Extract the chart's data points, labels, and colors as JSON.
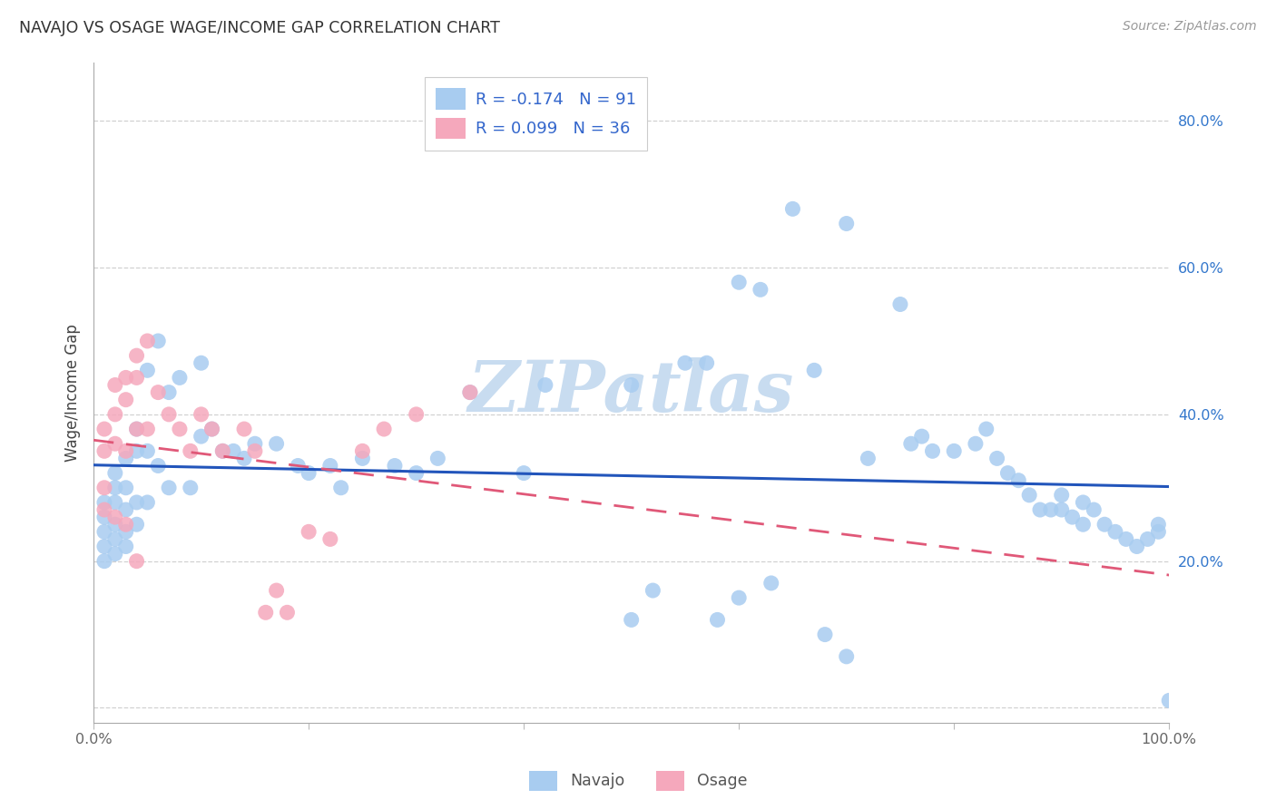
{
  "title": "NAVAJO VS OSAGE WAGE/INCOME GAP CORRELATION CHART",
  "source": "Source: ZipAtlas.com",
  "ylabel": "Wage/Income Gap",
  "xlim": [
    0.0,
    1.0
  ],
  "ylim": [
    -0.02,
    0.88
  ],
  "navajo_R": -0.174,
  "navajo_N": 91,
  "osage_R": 0.099,
  "osage_N": 36,
  "navajo_color": "#A8CCF0",
  "osage_color": "#F5A8BC",
  "navajo_line_color": "#2255BB",
  "osage_line_color": "#E05878",
  "grid_color": "#CCCCCC",
  "background_color": "#FFFFFF",
  "watermark": "ZIPatlas",
  "watermark_color": "#C8DCF0",
  "navajo_x": [
    0.01,
    0.01,
    0.01,
    0.01,
    0.01,
    0.02,
    0.02,
    0.02,
    0.02,
    0.02,
    0.02,
    0.03,
    0.03,
    0.03,
    0.03,
    0.03,
    0.04,
    0.04,
    0.04,
    0.04,
    0.05,
    0.05,
    0.05,
    0.06,
    0.06,
    0.07,
    0.07,
    0.08,
    0.09,
    0.1,
    0.1,
    0.11,
    0.12,
    0.13,
    0.14,
    0.15,
    0.17,
    0.19,
    0.2,
    0.22,
    0.23,
    0.25,
    0.28,
    0.3,
    0.32,
    0.35,
    0.42,
    0.5,
    0.55,
    0.57,
    0.6,
    0.62,
    0.65,
    0.67,
    0.7,
    0.72,
    0.75,
    0.76,
    0.77,
    0.78,
    0.8,
    0.82,
    0.83,
    0.84,
    0.85,
    0.86,
    0.87,
    0.88,
    0.89,
    0.9,
    0.9,
    0.91,
    0.92,
    0.92,
    0.93,
    0.94,
    0.95,
    0.96,
    0.97,
    0.98,
    0.99,
    0.99,
    1.0,
    0.7,
    0.68,
    0.52,
    0.6,
    0.63,
    0.58,
    0.5,
    0.4
  ],
  "navajo_y": [
    0.28,
    0.26,
    0.24,
    0.22,
    0.2,
    0.32,
    0.3,
    0.28,
    0.25,
    0.23,
    0.21,
    0.34,
    0.3,
    0.27,
    0.24,
    0.22,
    0.38,
    0.35,
    0.28,
    0.25,
    0.46,
    0.35,
    0.28,
    0.5,
    0.33,
    0.43,
    0.3,
    0.45,
    0.3,
    0.47,
    0.37,
    0.38,
    0.35,
    0.35,
    0.34,
    0.36,
    0.36,
    0.33,
    0.32,
    0.33,
    0.3,
    0.34,
    0.33,
    0.32,
    0.34,
    0.43,
    0.44,
    0.44,
    0.47,
    0.47,
    0.58,
    0.57,
    0.68,
    0.46,
    0.66,
    0.34,
    0.55,
    0.36,
    0.37,
    0.35,
    0.35,
    0.36,
    0.38,
    0.34,
    0.32,
    0.31,
    0.29,
    0.27,
    0.27,
    0.29,
    0.27,
    0.26,
    0.28,
    0.25,
    0.27,
    0.25,
    0.24,
    0.23,
    0.22,
    0.23,
    0.25,
    0.24,
    0.01,
    0.07,
    0.1,
    0.16,
    0.15,
    0.17,
    0.12,
    0.12,
    0.32
  ],
  "osage_x": [
    0.01,
    0.01,
    0.01,
    0.01,
    0.02,
    0.02,
    0.02,
    0.02,
    0.03,
    0.03,
    0.03,
    0.03,
    0.04,
    0.04,
    0.04,
    0.04,
    0.05,
    0.05,
    0.06,
    0.07,
    0.08,
    0.09,
    0.1,
    0.11,
    0.12,
    0.14,
    0.15,
    0.16,
    0.17,
    0.18,
    0.2,
    0.22,
    0.25,
    0.27,
    0.3,
    0.35
  ],
  "osage_y": [
    0.38,
    0.35,
    0.3,
    0.27,
    0.44,
    0.4,
    0.36,
    0.26,
    0.45,
    0.42,
    0.35,
    0.25,
    0.48,
    0.45,
    0.38,
    0.2,
    0.5,
    0.38,
    0.43,
    0.4,
    0.38,
    0.35,
    0.4,
    0.38,
    0.35,
    0.38,
    0.35,
    0.13,
    0.16,
    0.13,
    0.24,
    0.23,
    0.35,
    0.38,
    0.4,
    0.43
  ]
}
